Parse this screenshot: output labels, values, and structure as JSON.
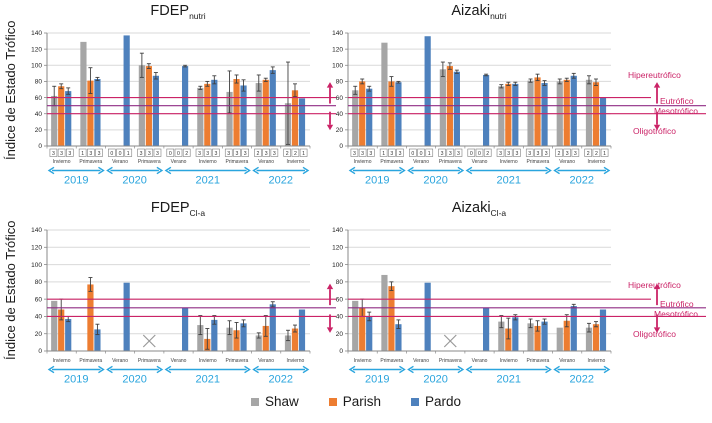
{
  "figure": {
    "ylabel": "Índice de Estado Trófico",
    "legend": [
      {
        "label": "Shaw",
        "color": "#A6A6A6"
      },
      {
        "label": "Parish",
        "color": "#ED7D31"
      },
      {
        "label": "Pardo",
        "color": "#4E81BD"
      }
    ],
    "trophic_labels": {
      "hypereutrophic": "Hipereutrófico",
      "eutrophic": "Eutrófico",
      "mesotrophic": "Mesotrófico",
      "oligotrophic": "Oligotrófico"
    },
    "ref_lines": [
      {
        "value": 60,
        "color": "#CB2367",
        "extend_far": false
      },
      {
        "value": 50,
        "color": "#8F2B84",
        "extend_far": true
      },
      {
        "value": 40,
        "color": "#CB2367",
        "extend_far": true
      }
    ],
    "accent_cyan": "#2AA5DE",
    "accent_crimson": "#CB2367"
  },
  "chart_data": [
    {
      "id": "fdep-nutri",
      "type": "bar",
      "title": "FDEP",
      "title_sub": "nutri",
      "ylim": [
        0,
        140
      ],
      "yticks": [
        0,
        20,
        40,
        60,
        80,
        100,
        120,
        140
      ],
      "series": [
        "Shaw",
        "Parish",
        "Pardo"
      ],
      "groups": [
        {
          "season": "Invierno",
          "counts": [
            3,
            3,
            3
          ],
          "values": [
            62,
            74,
            68
          ],
          "errors": [
            12,
            3,
            4
          ]
        },
        {
          "season": "Primavera",
          "counts": [
            1,
            3,
            3
          ],
          "values": [
            129,
            81,
            83
          ],
          "errors": [
            0,
            16,
            2
          ]
        },
        {
          "season": "Verano",
          "counts": [
            0,
            0,
            1
          ],
          "values": [
            null,
            null,
            137
          ],
          "errors": [
            null,
            null,
            0
          ]
        },
        {
          "season": "Primavera",
          "counts": [
            3,
            3,
            3
          ],
          "values": [
            100,
            99,
            87
          ],
          "errors": [
            15,
            3,
            4
          ]
        },
        {
          "season": "Verano",
          "counts": [
            0,
            0,
            2
          ],
          "values": [
            null,
            null,
            99
          ],
          "errors": [
            null,
            null,
            1
          ]
        },
        {
          "season": "Invierno",
          "counts": [
            3,
            3,
            3
          ],
          "values": [
            72,
            77,
            82
          ],
          "errors": [
            2,
            3,
            5
          ]
        },
        {
          "season": "Primavera",
          "counts": [
            3,
            3,
            3
          ],
          "values": [
            67,
            83,
            75
          ],
          "errors": [
            26,
            5,
            7
          ]
        },
        {
          "season": "Verano",
          "counts": [
            2,
            3,
            3
          ],
          "values": [
            78,
            82,
            94
          ],
          "errors": [
            10,
            2,
            4
          ]
        },
        {
          "season": "Invierno",
          "counts": [
            2,
            2,
            1
          ],
          "values": [
            53,
            69,
            59
          ],
          "errors": [
            51,
            8,
            0
          ]
        }
      ],
      "years": [
        {
          "label": "2019",
          "groups": [
            0,
            1
          ]
        },
        {
          "label": "2020",
          "groups": [
            2,
            3
          ]
        },
        {
          "label": "2021",
          "groups": [
            4,
            6
          ]
        },
        {
          "label": "2022",
          "groups": [
            7,
            8
          ]
        }
      ]
    },
    {
      "id": "aizaki-nutri",
      "type": "bar",
      "title": "Aizaki",
      "title_sub": "nutri",
      "ylim": [
        0,
        140
      ],
      "yticks": [
        0,
        20,
        40,
        60,
        80,
        100,
        120,
        140
      ],
      "series": [
        "Shaw",
        "Parish",
        "Pardo"
      ],
      "groups": [
        {
          "season": "Invierno",
          "counts": [
            3,
            3,
            3
          ],
          "values": [
            69,
            80,
            71
          ],
          "errors": [
            5,
            3,
            3
          ]
        },
        {
          "season": "Primavera",
          "counts": [
            1,
            3,
            3
          ],
          "values": [
            128,
            80,
            79
          ],
          "errors": [
            0,
            6,
            1
          ]
        },
        {
          "season": "Verano",
          "counts": [
            0,
            0,
            1
          ],
          "values": [
            null,
            null,
            136
          ],
          "errors": [
            null,
            null,
            0
          ]
        },
        {
          "season": "Primavera",
          "counts": [
            3,
            3,
            3
          ],
          "values": [
            95,
            99,
            92
          ],
          "errors": [
            9,
            4,
            2
          ]
        },
        {
          "season": "Verano",
          "counts": [
            0,
            0,
            2
          ],
          "values": [
            null,
            null,
            88
          ],
          "errors": [
            null,
            null,
            1
          ]
        },
        {
          "season": "Invierno",
          "counts": [
            3,
            3,
            3
          ],
          "values": [
            74,
            77,
            77
          ],
          "errors": [
            2,
            2,
            2
          ]
        },
        {
          "season": "Primavera",
          "counts": [
            3,
            3,
            3
          ],
          "values": [
            81,
            85,
            78
          ],
          "errors": [
            2,
            4,
            3
          ]
        },
        {
          "season": "Verano",
          "counts": [
            2,
            3,
            3
          ],
          "values": [
            80,
            82,
            87
          ],
          "errors": [
            3,
            2,
            3
          ]
        },
        {
          "season": "Invierno",
          "counts": [
            2,
            2,
            1
          ],
          "values": [
            82,
            79,
            60
          ],
          "errors": [
            5,
            4,
            0
          ]
        }
      ],
      "years": [
        {
          "label": "2019",
          "groups": [
            0,
            1
          ]
        },
        {
          "label": "2020",
          "groups": [
            2,
            3
          ]
        },
        {
          "label": "2021",
          "groups": [
            4,
            6
          ]
        },
        {
          "label": "2022",
          "groups": [
            7,
            8
          ]
        }
      ]
    },
    {
      "id": "fdep-cla",
      "type": "bar",
      "title": "FDEP",
      "title_sub": "Cl-a",
      "ylim": [
        0,
        140
      ],
      "yticks": [
        0,
        20,
        40,
        60,
        80,
        100,
        120,
        140
      ],
      "series": [
        "Shaw",
        "Parish",
        "Pardo"
      ],
      "groups": [
        {
          "season": "Invierno",
          "counts": null,
          "values": [
            58,
            48,
            37
          ],
          "errors": [
            0,
            12,
            3
          ]
        },
        {
          "season": "Primavera",
          "counts": null,
          "values": [
            null,
            77,
            25
          ],
          "errors": [
            null,
            8,
            6
          ]
        },
        {
          "season": "Verano",
          "counts": null,
          "values": [
            null,
            null,
            79
          ],
          "errors": [
            null,
            null,
            0
          ]
        },
        {
          "season": "Primavera",
          "counts": null,
          "missing": true,
          "values": [
            null,
            null,
            null
          ],
          "errors": [
            null,
            null,
            null
          ]
        },
        {
          "season": "Verano",
          "counts": null,
          "values": [
            null,
            null,
            50
          ],
          "errors": [
            null,
            null,
            0
          ]
        },
        {
          "season": "Invierno",
          "counts": null,
          "values": [
            30,
            14,
            36
          ],
          "errors": [
            11,
            12,
            5
          ]
        },
        {
          "season": "Primavera",
          "counts": null,
          "values": [
            27,
            24,
            32
          ],
          "errors": [
            8,
            9,
            4
          ]
        },
        {
          "season": "Verano",
          "counts": null,
          "values": [
            18,
            29,
            54
          ],
          "errors": [
            3,
            12,
            3
          ]
        },
        {
          "season": "Invierno",
          "counts": null,
          "values": [
            18,
            26,
            48
          ],
          "errors": [
            6,
            4,
            0
          ]
        }
      ],
      "years": [
        {
          "label": "2019",
          "groups": [
            0,
            1
          ]
        },
        {
          "label": "2020",
          "groups": [
            2,
            3
          ]
        },
        {
          "label": "2021",
          "groups": [
            4,
            6
          ]
        },
        {
          "label": "2022",
          "groups": [
            7,
            8
          ]
        }
      ]
    },
    {
      "id": "aizaki-cla",
      "type": "bar",
      "title": "Aizaki",
      "title_sub": "Cl-a",
      "ylim": [
        0,
        140
      ],
      "yticks": [
        0,
        20,
        40,
        60,
        80,
        100,
        120,
        140
      ],
      "series": [
        "Shaw",
        "Parish",
        "Pardo"
      ],
      "groups": [
        {
          "season": "Invierno",
          "counts": null,
          "values": [
            58,
            50,
            40
          ],
          "errors": [
            0,
            10,
            5
          ]
        },
        {
          "season": "Primavera",
          "counts": null,
          "values": [
            88,
            75,
            31
          ],
          "errors": [
            0,
            5,
            5
          ]
        },
        {
          "season": "Verano",
          "counts": null,
          "values": [
            null,
            null,
            79
          ],
          "errors": [
            null,
            null,
            0
          ]
        },
        {
          "season": "Primavera",
          "counts": null,
          "missing": true,
          "values": [
            null,
            null,
            null
          ],
          "errors": [
            null,
            null,
            null
          ]
        },
        {
          "season": "Verano",
          "counts": null,
          "values": [
            null,
            null,
            50
          ],
          "errors": [
            null,
            null,
            0
          ]
        },
        {
          "season": "Invierno",
          "counts": null,
          "values": [
            34,
            26,
            39
          ],
          "errors": [
            7,
            12,
            3
          ]
        },
        {
          "season": "Primavera",
          "counts": null,
          "values": [
            32,
            29,
            34
          ],
          "errors": [
            5,
            6,
            3
          ]
        },
        {
          "season": "Verano",
          "counts": null,
          "values": [
            27,
            35,
            52
          ],
          "errors": [
            0,
            7,
            2
          ]
        },
        {
          "season": "Invierno",
          "counts": null,
          "values": [
            27,
            31,
            48
          ],
          "errors": [
            5,
            3,
            0
          ]
        }
      ],
      "years": [
        {
          "label": "2019",
          "groups": [
            0,
            1
          ]
        },
        {
          "label": "2020",
          "groups": [
            2,
            3
          ]
        },
        {
          "label": "2021",
          "groups": [
            4,
            6
          ]
        },
        {
          "label": "2022",
          "groups": [
            7,
            8
          ]
        }
      ]
    }
  ]
}
